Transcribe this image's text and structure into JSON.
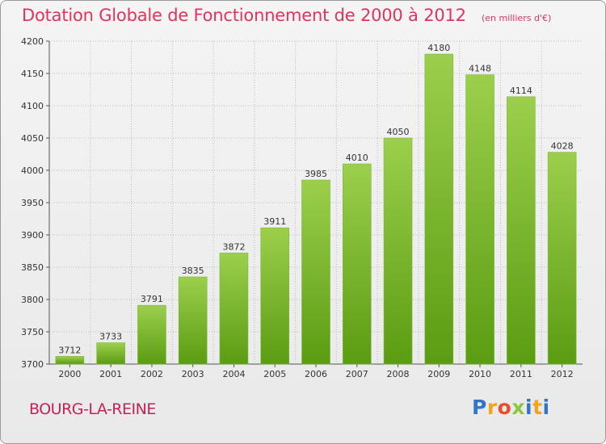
{
  "header": {
    "title": "Dotation Globale de Fonctionnement de 2000 à 2012",
    "unit": "(en milliers d'€)"
  },
  "footer": {
    "commune": "BOURG-LA-REINE",
    "logo_letters": [
      "P",
      "r",
      "o",
      "x",
      "i",
      "t",
      "i"
    ]
  },
  "colors": {
    "title": "#e0345d",
    "commune": "#c4215b",
    "bar_top": "#9ccf4c",
    "bar_bottom": "#5a9c12",
    "grid": "#bdbdbd"
  },
  "chart_data": {
    "type": "bar",
    "title": "Dotation Globale de Fonctionnement de 2000 à 2012",
    "subtitle": "(en milliers d'€)",
    "xlabel": "",
    "ylabel": "",
    "categories": [
      "2000",
      "2001",
      "2002",
      "2003",
      "2004",
      "2005",
      "2006",
      "2007",
      "2008",
      "2009",
      "2010",
      "2011",
      "2012"
    ],
    "values": [
      3712,
      3733,
      3791,
      3835,
      3872,
      3911,
      3985,
      4010,
      4050,
      4180,
      4148,
      4114,
      4028
    ],
    "ylim": [
      3700,
      4200
    ],
    "yticks": [
      3700,
      3750,
      3800,
      3850,
      3900,
      3950,
      4000,
      4050,
      4100,
      4150,
      4200
    ],
    "grid": true,
    "data_labels": true
  }
}
